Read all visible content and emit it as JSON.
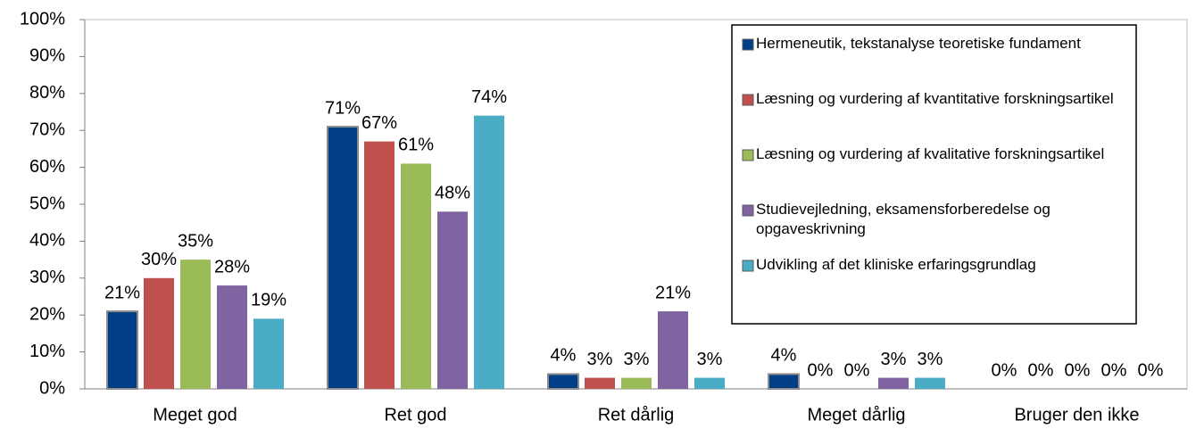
{
  "chart_data": {
    "type": "bar",
    "categories": [
      "Meget god",
      "Ret god",
      "Ret dårlig",
      "Meget dårlig",
      "Bruger den ikke"
    ],
    "series": [
      {
        "name": "Hermeneutik, tekstanalyse teoretiske fundament",
        "color": "#003f87",
        "values": [
          21,
          71,
          4,
          4,
          0
        ],
        "value_labels": [
          "21%",
          "71%",
          "4%",
          "4%",
          "0%"
        ]
      },
      {
        "name": "Læsning og vurdering af kvantitative forskningsartikel",
        "color": "#c0504d",
        "values": [
          30,
          67,
          3,
          0,
          0
        ],
        "value_labels": [
          "30%",
          "67%",
          "3%",
          "0%",
          "0%"
        ]
      },
      {
        "name": "Læsning og vurdering af kvalitative forskningsartikel",
        "color": "#9bbb59",
        "values": [
          35,
          61,
          3,
          0,
          0
        ],
        "value_labels": [
          "35%",
          "61%",
          "3%",
          "0%",
          "0%"
        ]
      },
      {
        "name": "Studievejledning, eksamensforberedelse og opgaveskrivning",
        "color": "#8064a2",
        "values": [
          28,
          48,
          21,
          3,
          0
        ],
        "value_labels": [
          "28%",
          "48%",
          "21%",
          "3%",
          "0%"
        ]
      },
      {
        "name": "Udvikling af det kliniske erfaringsgrundlag",
        "color": "#4bacc6",
        "values": [
          19,
          74,
          3,
          3,
          0
        ],
        "value_labels": [
          "19%",
          "74%",
          "3%",
          "3%",
          "0%"
        ]
      }
    ],
    "ylim": [
      0,
      100
    ],
    "yticks": [
      {
        "value": 0,
        "label": "0%"
      },
      {
        "value": 10,
        "label": "10%"
      },
      {
        "value": 20,
        "label": "20%"
      },
      {
        "value": 30,
        "label": "30%"
      },
      {
        "value": 40,
        "label": "40%"
      },
      {
        "value": 50,
        "label": "50%"
      },
      {
        "value": 60,
        "label": "60%"
      },
      {
        "value": 70,
        "label": "70%"
      },
      {
        "value": 80,
        "label": "80%"
      },
      {
        "value": 90,
        "label": "90%"
      },
      {
        "value": 100,
        "label": "100%"
      }
    ],
    "grid": false,
    "legend": "upper right"
  }
}
